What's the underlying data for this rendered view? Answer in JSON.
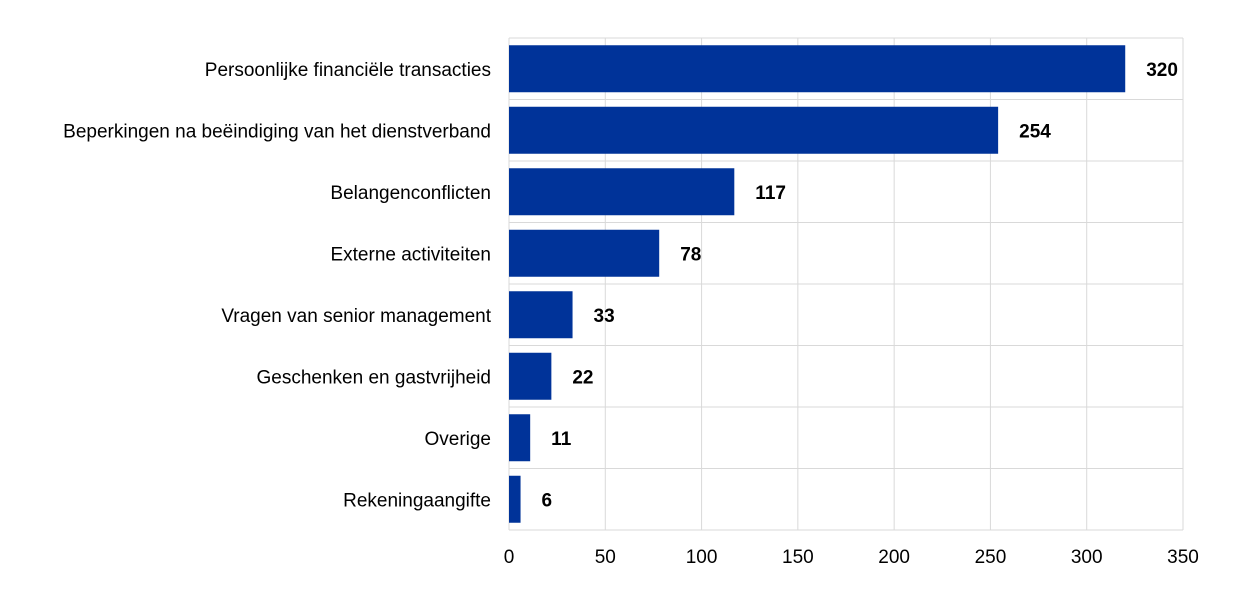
{
  "chart_data": {
    "type": "bar",
    "orientation": "horizontal",
    "categories": [
      "Persoonlijke financiële transacties",
      "Beperkingen na beëindiging van het dienstverband",
      "Belangenconflicten",
      "Externe activiteiten",
      "Vragen van senior management",
      "Geschenken en gastvrijheid",
      "Overige",
      "Rekeningaangifte"
    ],
    "values": [
      320,
      254,
      117,
      78,
      33,
      22,
      11,
      6
    ],
    "data_labels": [
      "320",
      "254",
      "117",
      "78",
      "33",
      "22",
      "11",
      "6"
    ],
    "xlim": [
      0,
      350
    ],
    "xticks": [
      0,
      50,
      100,
      150,
      200,
      250,
      300,
      350
    ],
    "xtick_labels": [
      "0",
      "50",
      "100",
      "150",
      "200",
      "250",
      "300",
      "350"
    ],
    "grid": true,
    "bar_color": "#003399",
    "grid_color": "#d9d9d9"
  }
}
